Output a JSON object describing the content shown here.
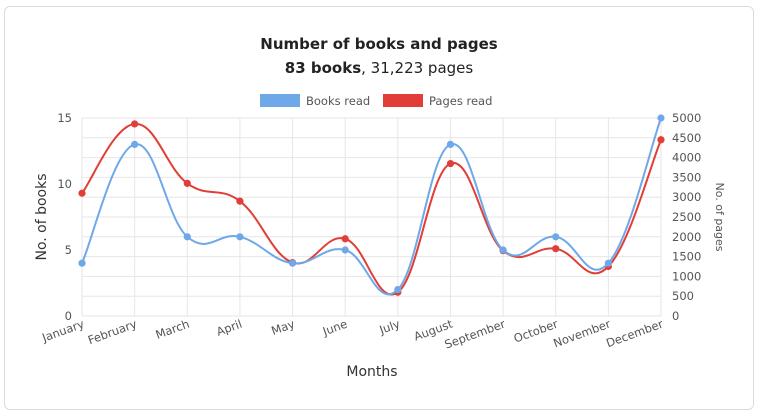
{
  "chart_data": {
    "type": "line",
    "title": "Number of books and pages",
    "subtitle_bold": "83 books",
    "subtitle_rest": ", 31,223 pages",
    "xlabel": "Months",
    "ylabel": "No. of books",
    "y2label": "No. of pages",
    "categories": [
      "January",
      "February",
      "March",
      "April",
      "May",
      "June",
      "July",
      "August",
      "September",
      "October",
      "November",
      "December"
    ],
    "ylim": [
      0,
      15
    ],
    "y_ticks": [
      0,
      5,
      10,
      15
    ],
    "y2lim": [
      0,
      5000
    ],
    "y2_ticks": [
      0,
      500,
      1000,
      1500,
      2000,
      2500,
      3000,
      3500,
      4000,
      4500,
      5000
    ],
    "grid": true,
    "legend": "top",
    "series": [
      {
        "name": "Books read",
        "axis": "left",
        "color": "#6fa8e8",
        "values": [
          4,
          13,
          6,
          6,
          4,
          5,
          2,
          13,
          5,
          6,
          4,
          15
        ]
      },
      {
        "name": "Pages read",
        "axis": "right",
        "color": "#e03e36",
        "values": [
          3100,
          4850,
          3350,
          2900,
          1350,
          1950,
          600,
          3850,
          1650,
          1700,
          1250,
          4450
        ]
      }
    ]
  }
}
